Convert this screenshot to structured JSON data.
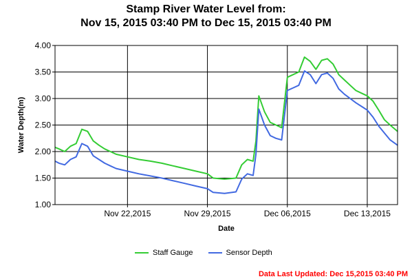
{
  "title_line1": "Stamp River Water Level from:",
  "title_line2": "Nov 15, 2015 03:40 PM to Dec 15, 2015 03:40 PM",
  "updated_text": "Data Last Updated: Dec 15,2015 03:40 PM",
  "chart_data": {
    "type": "line",
    "title": "Stamp River Water Level from: Nov 15, 2015 03:40 PM to Dec 15, 2015 03:40 PM",
    "xlabel": "Date",
    "ylabel": "Water Depth(m)",
    "xlim": [
      "2015-11-15T15:40",
      "2015-12-15T15:40"
    ],
    "ylim": [
      1.0,
      4.0
    ],
    "yticks": [
      "1.00",
      "1.50",
      "2.00",
      "2.50",
      "3.00",
      "3.50",
      "4.00"
    ],
    "xticks": [
      {
        "date": "2015-11-22",
        "label": "Nov 22,2015"
      },
      {
        "date": "2015-11-29",
        "label": "Nov 29,2015"
      },
      {
        "date": "2015-12-06",
        "label": "Dec 06,2015"
      },
      {
        "date": "2015-12-13",
        "label": "Dec 13,2015"
      }
    ],
    "grid": true,
    "legend_position": "bottom",
    "series": [
      {
        "name": "Staff Gauge",
        "color": "#33cc33",
        "points": [
          [
            "2015-11-15T15:40",
            2.08
          ],
          [
            "2015-11-16T00:00",
            2.05
          ],
          [
            "2015-11-16T12:00",
            2.0
          ],
          [
            "2015-11-17T00:00",
            2.1
          ],
          [
            "2015-11-17T12:00",
            2.15
          ],
          [
            "2015-11-18T00:00",
            2.42
          ],
          [
            "2015-11-18T12:00",
            2.38
          ],
          [
            "2015-11-19T00:00",
            2.2
          ],
          [
            "2015-11-19T12:00",
            2.12
          ],
          [
            "2015-11-20T00:00",
            2.05
          ],
          [
            "2015-11-20T12:00",
            2.0
          ],
          [
            "2015-11-21T00:00",
            1.95
          ],
          [
            "2015-11-22T00:00",
            1.9
          ],
          [
            "2015-11-23T00:00",
            1.85
          ],
          [
            "2015-11-24T00:00",
            1.82
          ],
          [
            "2015-11-25T00:00",
            1.78
          ],
          [
            "2015-11-26T00:00",
            1.73
          ],
          [
            "2015-11-27T00:00",
            1.68
          ],
          [
            "2015-11-28T00:00",
            1.63
          ],
          [
            "2015-11-29T00:00",
            1.58
          ],
          [
            "2015-11-29T12:00",
            1.5
          ],
          [
            "2015-11-30T12:00",
            1.48
          ],
          [
            "2015-12-01T12:00",
            1.5
          ],
          [
            "2015-12-02T00:00",
            1.75
          ],
          [
            "2015-12-02T12:00",
            1.85
          ],
          [
            "2015-12-03T00:00",
            1.82
          ],
          [
            "2015-12-03T06:00",
            2.2
          ],
          [
            "2015-12-03T12:00",
            3.05
          ],
          [
            "2015-12-04T00:00",
            2.75
          ],
          [
            "2015-12-04T12:00",
            2.55
          ],
          [
            "2015-12-05T00:00",
            2.5
          ],
          [
            "2015-12-05T12:00",
            2.45
          ],
          [
            "2015-12-06T00:00",
            3.4
          ],
          [
            "2015-12-06T12:00",
            3.45
          ],
          [
            "2015-12-07T00:00",
            3.5
          ],
          [
            "2015-12-07T12:00",
            3.78
          ],
          [
            "2015-12-08T00:00",
            3.7
          ],
          [
            "2015-12-08T12:00",
            3.55
          ],
          [
            "2015-12-09T00:00",
            3.72
          ],
          [
            "2015-12-09T12:00",
            3.75
          ],
          [
            "2015-12-10T00:00",
            3.65
          ],
          [
            "2015-12-10T12:00",
            3.45
          ],
          [
            "2015-12-11T00:00",
            3.35
          ],
          [
            "2015-12-11T12:00",
            3.25
          ],
          [
            "2015-12-12T00:00",
            3.15
          ],
          [
            "2015-12-12T12:00",
            3.1
          ],
          [
            "2015-12-13T00:00",
            3.05
          ],
          [
            "2015-12-13T12:00",
            2.95
          ],
          [
            "2015-12-14T00:00",
            2.78
          ],
          [
            "2015-12-14T12:00",
            2.6
          ],
          [
            "2015-12-15T00:00",
            2.5
          ],
          [
            "2015-12-15T15:40",
            2.38
          ]
        ]
      },
      {
        "name": "Sensor Depth",
        "color": "#4169e1",
        "points": [
          [
            "2015-11-15T15:40",
            1.82
          ],
          [
            "2015-11-16T00:00",
            1.78
          ],
          [
            "2015-11-16T12:00",
            1.75
          ],
          [
            "2015-11-17T00:00",
            1.85
          ],
          [
            "2015-11-17T12:00",
            1.9
          ],
          [
            "2015-11-18T00:00",
            2.15
          ],
          [
            "2015-11-18T12:00",
            2.1
          ],
          [
            "2015-11-19T00:00",
            1.92
          ],
          [
            "2015-11-19T12:00",
            1.85
          ],
          [
            "2015-11-20T00:00",
            1.78
          ],
          [
            "2015-11-20T12:00",
            1.73
          ],
          [
            "2015-11-21T00:00",
            1.68
          ],
          [
            "2015-11-22T00:00",
            1.63
          ],
          [
            "2015-11-23T00:00",
            1.58
          ],
          [
            "2015-11-24T00:00",
            1.54
          ],
          [
            "2015-11-25T00:00",
            1.5
          ],
          [
            "2015-11-26T00:00",
            1.45
          ],
          [
            "2015-11-27T00:00",
            1.4
          ],
          [
            "2015-11-28T00:00",
            1.35
          ],
          [
            "2015-11-29T00:00",
            1.3
          ],
          [
            "2015-11-29T12:00",
            1.23
          ],
          [
            "2015-11-30T12:00",
            1.21
          ],
          [
            "2015-12-01T12:00",
            1.24
          ],
          [
            "2015-12-02T00:00",
            1.48
          ],
          [
            "2015-12-02T12:00",
            1.58
          ],
          [
            "2015-12-03T00:00",
            1.55
          ],
          [
            "2015-12-03T06:00",
            1.95
          ],
          [
            "2015-12-03T12:00",
            2.8
          ],
          [
            "2015-12-04T00:00",
            2.5
          ],
          [
            "2015-12-04T12:00",
            2.3
          ],
          [
            "2015-12-05T00:00",
            2.25
          ],
          [
            "2015-12-05T12:00",
            2.22
          ],
          [
            "2015-12-06T00:00",
            3.15
          ],
          [
            "2015-12-06T12:00",
            3.2
          ],
          [
            "2015-12-07T00:00",
            3.25
          ],
          [
            "2015-12-07T12:00",
            3.52
          ],
          [
            "2015-12-08T00:00",
            3.45
          ],
          [
            "2015-12-08T12:00",
            3.28
          ],
          [
            "2015-12-09T00:00",
            3.45
          ],
          [
            "2015-12-09T12:00",
            3.48
          ],
          [
            "2015-12-10T00:00",
            3.38
          ],
          [
            "2015-12-10T12:00",
            3.18
          ],
          [
            "2015-12-11T00:00",
            3.08
          ],
          [
            "2015-12-11T12:00",
            3.0
          ],
          [
            "2015-12-12T00:00",
            2.92
          ],
          [
            "2015-12-12T12:00",
            2.85
          ],
          [
            "2015-12-13T00:00",
            2.78
          ],
          [
            "2015-12-13T12:00",
            2.65
          ],
          [
            "2015-12-14T00:00",
            2.48
          ],
          [
            "2015-12-14T12:00",
            2.35
          ],
          [
            "2015-12-15T00:00",
            2.22
          ],
          [
            "2015-12-15T15:40",
            2.12
          ]
        ]
      }
    ]
  }
}
